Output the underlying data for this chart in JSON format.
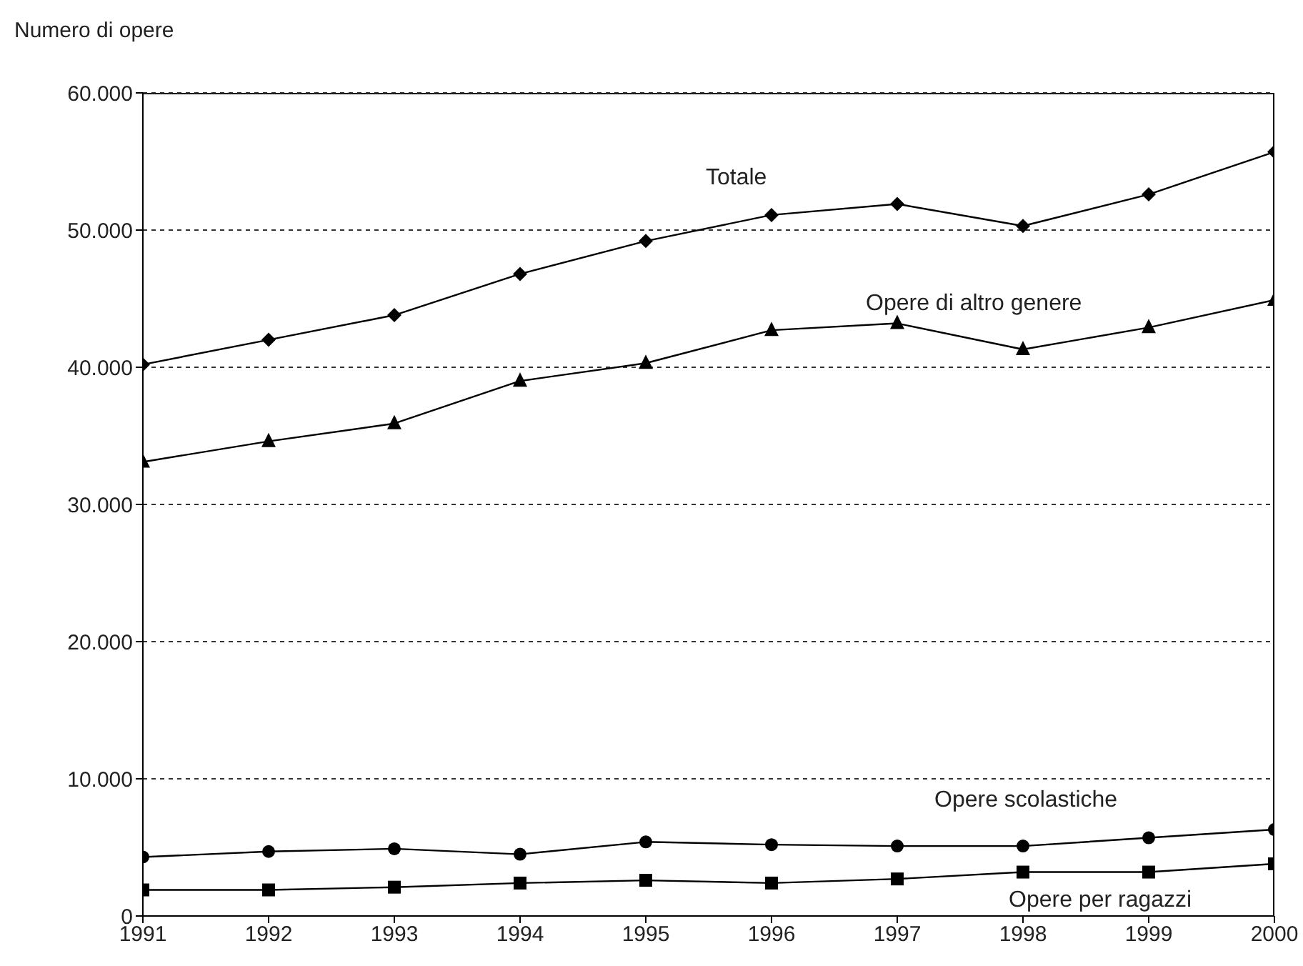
{
  "chart_data": {
    "type": "line",
    "ylabel": "Numero di opere",
    "x": [
      1991,
      1992,
      1993,
      1994,
      1995,
      1996,
      1997,
      1998,
      1999,
      2000
    ],
    "xlim": [
      1991,
      2000
    ],
    "xticks": [
      1991,
      1992,
      1993,
      1994,
      1995,
      1996,
      1997,
      1998,
      1999,
      2000
    ],
    "ylim": [
      0,
      60000
    ],
    "yticks": [
      {
        "value": 0,
        "label": "0"
      },
      {
        "value": 10000,
        "label": "10.000"
      },
      {
        "value": 20000,
        "label": "20.000"
      },
      {
        "value": 30000,
        "label": "30.000"
      },
      {
        "value": 40000,
        "label": "40.000"
      },
      {
        "value": 50000,
        "label": "50.000"
      },
      {
        "value": 60000,
        "label": "60.000"
      }
    ],
    "grid": "y",
    "legend": false,
    "line_style": "solid",
    "series": [
      {
        "name": "Totale",
        "color": "#000000",
        "marker": "diamond",
        "values": [
          40200,
          42000,
          43800,
          46800,
          49200,
          51100,
          51900,
          50300,
          52600,
          55700
        ]
      },
      {
        "name": "Opere di altro genere",
        "color": "#000000",
        "marker": "triangle",
        "values": [
          33100,
          34600,
          35900,
          39000,
          40300,
          42700,
          43200,
          41300,
          42900,
          44900
        ]
      },
      {
        "name": "Opere scolastiche",
        "color": "#000000",
        "marker": "circle",
        "values": [
          4300,
          4700,
          4900,
          4500,
          5400,
          5200,
          5100,
          5100,
          5700,
          6300
        ]
      },
      {
        "name": "Opere per ragazzi",
        "color": "#000000",
        "marker": "square",
        "values": [
          1900,
          1900,
          2100,
          2400,
          2600,
          2400,
          2700,
          3200,
          3200,
          3800
        ]
      }
    ]
  }
}
